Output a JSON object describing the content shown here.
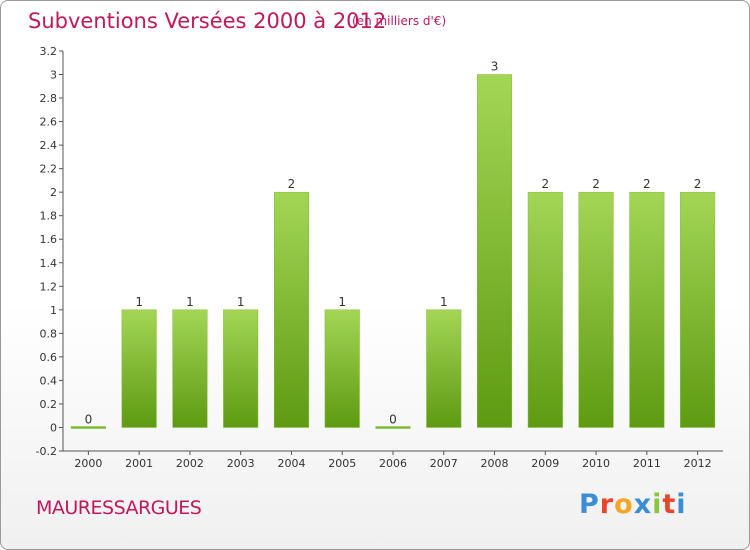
{
  "header": {
    "title": "Subventions Versées 2000 à 2012",
    "unit_note": "(en milliers d'€)"
  },
  "footer": {
    "commune": "MAURESSARGUES",
    "logo_text": "Proxiti"
  },
  "colors": {
    "title": "#c2185b",
    "bar_light": "#9dd14e",
    "bar_dark": "#5e9a12",
    "axis": "#333333",
    "logo": [
      "#3a8ed6",
      "#e8452c",
      "#f5a623",
      "#3a8ed6",
      "#8cc63f",
      "#e8452c",
      "#3a8ed6"
    ]
  },
  "chart_data": {
    "type": "bar",
    "categories": [
      "2000",
      "2001",
      "2002",
      "2003",
      "2004",
      "2005",
      "2006",
      "2007",
      "2008",
      "2009",
      "2010",
      "2011",
      "2012"
    ],
    "values": [
      0,
      1,
      1,
      1,
      2,
      1,
      0,
      1,
      3,
      2,
      2,
      2,
      2
    ],
    "value_labels": [
      "0",
      "1",
      "1",
      "1",
      "2",
      "1",
      "0",
      "1",
      "3",
      "2",
      "2",
      "2",
      "2"
    ],
    "yticks": [
      -0.2,
      0,
      0.2,
      0.4,
      0.6,
      0.8,
      1,
      1.2,
      1.4,
      1.6,
      1.8,
      2,
      2.2,
      2.4,
      2.6,
      2.8,
      3,
      3.2
    ],
    "ytick_labels": [
      "-0.2",
      "0",
      "0.2",
      "0.4",
      "0.6",
      "0.8",
      "1",
      "1.2",
      "1.4",
      "1.6",
      "1.8",
      "2",
      "2.2",
      "2.4",
      "2.6",
      "2.8",
      "3",
      "3.2"
    ],
    "ylim": [
      -0.2,
      3.2
    ],
    "grid": false,
    "legend": "none"
  }
}
